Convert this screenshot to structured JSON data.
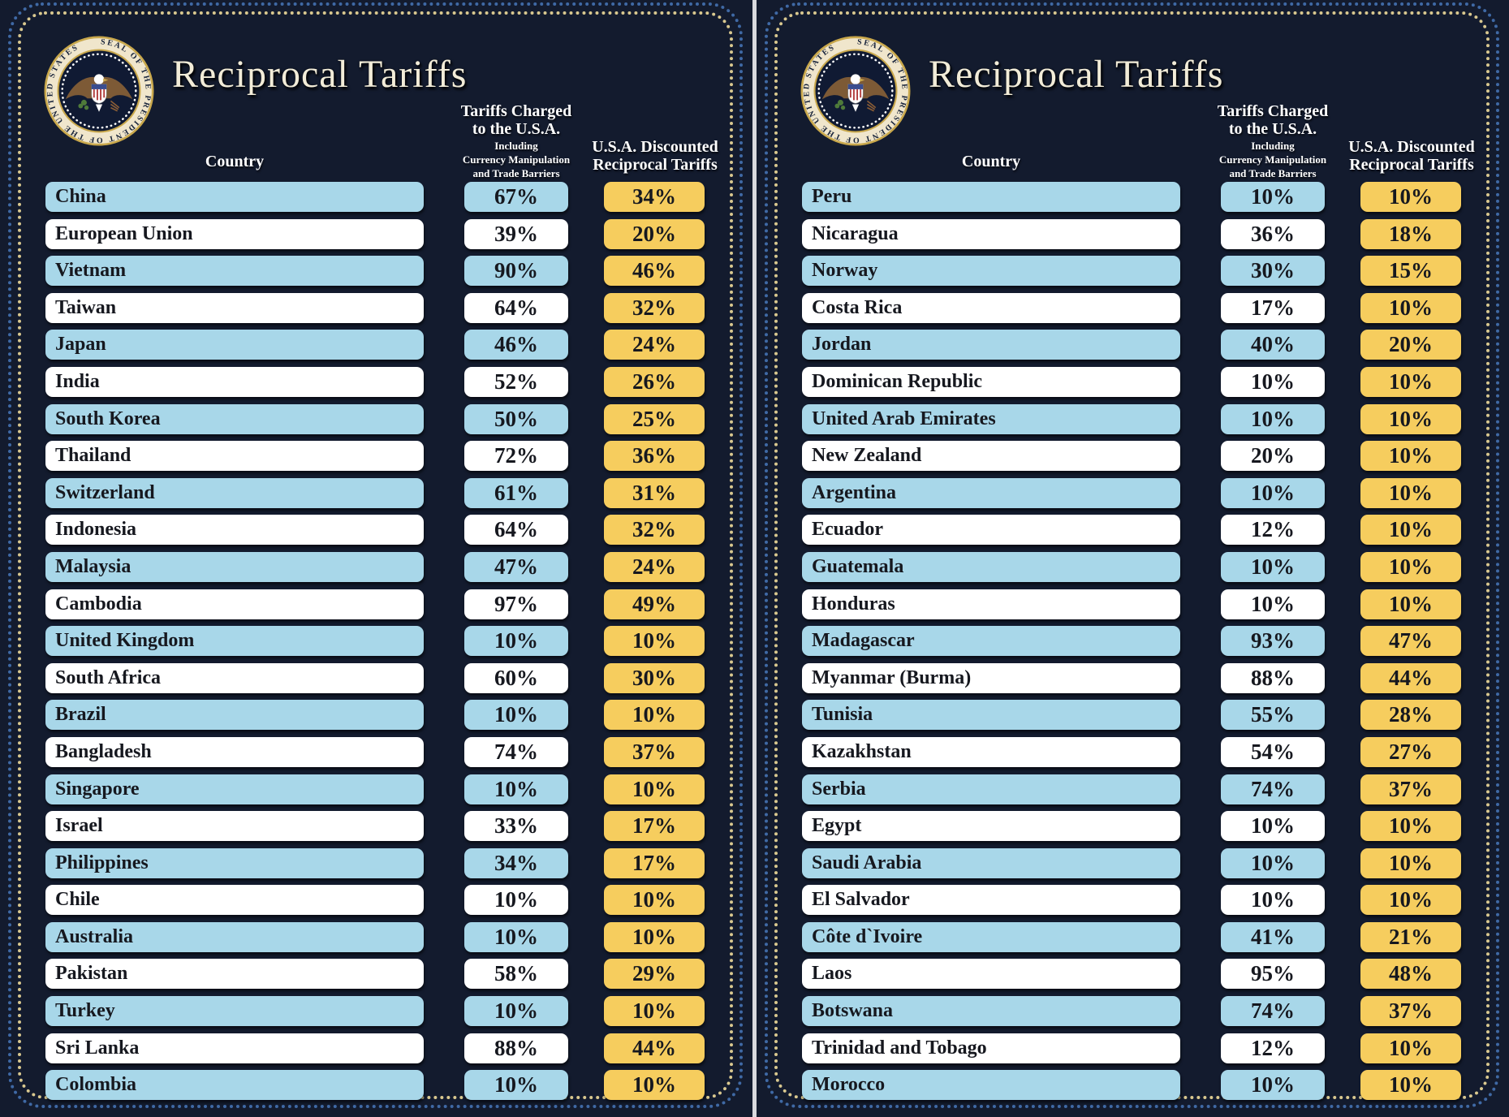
{
  "colors": {
    "background": "#131b2e",
    "row_blue": "#a8d7e9",
    "row_white": "#ffffff",
    "discount_gold": "#f6cd5e",
    "border_blue_dots": "#3f69a5",
    "border_cream_dots": "#d9c88f",
    "title_cream": "#f2ecd8",
    "header_text": "#ffffff",
    "row_text": "#16181f"
  },
  "seal": {
    "ring_text": "SEAL OF THE PRESIDENT OF THE UNITED STATES"
  },
  "panels": [
    {
      "title": "Reciprocal Tariffs",
      "col_country": "Country",
      "col_charged_line1": "Tariffs Charged",
      "col_charged_line2": "to the U.S.A.",
      "col_charged_sub1": "Including",
      "col_charged_sub2": "Currency Manipulation",
      "col_charged_sub3": "and Trade Barriers",
      "col_discounted_line1": "U.S.A. Discounted",
      "col_discounted_line2": "Reciprocal Tariffs",
      "rows": [
        {
          "country": "China",
          "charged": "67%",
          "discounted": "34%"
        },
        {
          "country": "European Union",
          "charged": "39%",
          "discounted": "20%"
        },
        {
          "country": "Vietnam",
          "charged": "90%",
          "discounted": "46%"
        },
        {
          "country": "Taiwan",
          "charged": "64%",
          "discounted": "32%"
        },
        {
          "country": "Japan",
          "charged": "46%",
          "discounted": "24%"
        },
        {
          "country": "India",
          "charged": "52%",
          "discounted": "26%"
        },
        {
          "country": "South Korea",
          "charged": "50%",
          "discounted": "25%"
        },
        {
          "country": "Thailand",
          "charged": "72%",
          "discounted": "36%"
        },
        {
          "country": "Switzerland",
          "charged": "61%",
          "discounted": "31%"
        },
        {
          "country": "Indonesia",
          "charged": "64%",
          "discounted": "32%"
        },
        {
          "country": "Malaysia",
          "charged": "47%",
          "discounted": "24%"
        },
        {
          "country": "Cambodia",
          "charged": "97%",
          "discounted": "49%"
        },
        {
          "country": "United Kingdom",
          "charged": "10%",
          "discounted": "10%"
        },
        {
          "country": "South Africa",
          "charged": "60%",
          "discounted": "30%"
        },
        {
          "country": "Brazil",
          "charged": "10%",
          "discounted": "10%"
        },
        {
          "country": "Bangladesh",
          "charged": "74%",
          "discounted": "37%"
        },
        {
          "country": "Singapore",
          "charged": "10%",
          "discounted": "10%"
        },
        {
          "country": "Israel",
          "charged": "33%",
          "discounted": "17%"
        },
        {
          "country": "Philippines",
          "charged": "34%",
          "discounted": "17%"
        },
        {
          "country": "Chile",
          "charged": "10%",
          "discounted": "10%"
        },
        {
          "country": "Australia",
          "charged": "10%",
          "discounted": "10%"
        },
        {
          "country": "Pakistan",
          "charged": "58%",
          "discounted": "29%"
        },
        {
          "country": "Turkey",
          "charged": "10%",
          "discounted": "10%"
        },
        {
          "country": "Sri Lanka",
          "charged": "88%",
          "discounted": "44%"
        },
        {
          "country": "Colombia",
          "charged": "10%",
          "discounted": "10%"
        }
      ]
    },
    {
      "title": "Reciprocal Tariffs",
      "col_country": "Country",
      "col_charged_line1": "Tariffs Charged",
      "col_charged_line2": "to the U.S.A.",
      "col_charged_sub1": "Including",
      "col_charged_sub2": "Currency Manipulation",
      "col_charged_sub3": "and Trade Barriers",
      "col_discounted_line1": "U.S.A. Discounted",
      "col_discounted_line2": "Reciprocal Tariffs",
      "rows": [
        {
          "country": "Peru",
          "charged": "10%",
          "discounted": "10%"
        },
        {
          "country": "Nicaragua",
          "charged": "36%",
          "discounted": "18%"
        },
        {
          "country": "Norway",
          "charged": "30%",
          "discounted": "15%"
        },
        {
          "country": "Costa Rica",
          "charged": "17%",
          "discounted": "10%"
        },
        {
          "country": "Jordan",
          "charged": "40%",
          "discounted": "20%"
        },
        {
          "country": "Dominican Republic",
          "charged": "10%",
          "discounted": "10%"
        },
        {
          "country": "United Arab Emirates",
          "charged": "10%",
          "discounted": "10%"
        },
        {
          "country": "New Zealand",
          "charged": "20%",
          "discounted": "10%"
        },
        {
          "country": "Argentina",
          "charged": "10%",
          "discounted": "10%"
        },
        {
          "country": "Ecuador",
          "charged": "12%",
          "discounted": "10%"
        },
        {
          "country": "Guatemala",
          "charged": "10%",
          "discounted": "10%"
        },
        {
          "country": "Honduras",
          "charged": "10%",
          "discounted": "10%"
        },
        {
          "country": "Madagascar",
          "charged": "93%",
          "discounted": "47%"
        },
        {
          "country": "Myanmar (Burma)",
          "charged": "88%",
          "discounted": "44%"
        },
        {
          "country": "Tunisia",
          "charged": "55%",
          "discounted": "28%"
        },
        {
          "country": "Kazakhstan",
          "charged": "54%",
          "discounted": "27%"
        },
        {
          "country": "Serbia",
          "charged": "74%",
          "discounted": "37%"
        },
        {
          "country": "Egypt",
          "charged": "10%",
          "discounted": "10%"
        },
        {
          "country": "Saudi Arabia",
          "charged": "10%",
          "discounted": "10%"
        },
        {
          "country": "El Salvador",
          "charged": "10%",
          "discounted": "10%"
        },
        {
          "country": "Côte d`Ivoire",
          "charged": "41%",
          "discounted": "21%"
        },
        {
          "country": "Laos",
          "charged": "95%",
          "discounted": "48%"
        },
        {
          "country": "Botswana",
          "charged": "74%",
          "discounted": "37%"
        },
        {
          "country": "Trinidad and Tobago",
          "charged": "12%",
          "discounted": "10%"
        },
        {
          "country": "Morocco",
          "charged": "10%",
          "discounted": "10%"
        }
      ]
    }
  ],
  "chart_data": {
    "type": "table",
    "title": "Reciprocal Tariffs",
    "columns": [
      "Country",
      "Tariffs Charged to the U.S.A. Including Currency Manipulation and Trade Barriers (%)",
      "U.S.A. Discounted Reciprocal Tariffs (%)"
    ],
    "series": [
      {
        "name": "panel-1",
        "rows": [
          [
            "China",
            67,
            34
          ],
          [
            "European Union",
            39,
            20
          ],
          [
            "Vietnam",
            90,
            46
          ],
          [
            "Taiwan",
            64,
            32
          ],
          [
            "Japan",
            46,
            24
          ],
          [
            "India",
            52,
            26
          ],
          [
            "South Korea",
            50,
            25
          ],
          [
            "Thailand",
            72,
            36
          ],
          [
            "Switzerland",
            61,
            31
          ],
          [
            "Indonesia",
            64,
            32
          ],
          [
            "Malaysia",
            47,
            24
          ],
          [
            "Cambodia",
            97,
            49
          ],
          [
            "United Kingdom",
            10,
            10
          ],
          [
            "South Africa",
            60,
            30
          ],
          [
            "Brazil",
            10,
            10
          ],
          [
            "Bangladesh",
            74,
            37
          ],
          [
            "Singapore",
            10,
            10
          ],
          [
            "Israel",
            33,
            17
          ],
          [
            "Philippines",
            34,
            17
          ],
          [
            "Chile",
            10,
            10
          ],
          [
            "Australia",
            10,
            10
          ],
          [
            "Pakistan",
            58,
            29
          ],
          [
            "Turkey",
            10,
            10
          ],
          [
            "Sri Lanka",
            88,
            44
          ],
          [
            "Colombia",
            10,
            10
          ]
        ]
      },
      {
        "name": "panel-2",
        "rows": [
          [
            "Peru",
            10,
            10
          ],
          [
            "Nicaragua",
            36,
            18
          ],
          [
            "Norway",
            30,
            15
          ],
          [
            "Costa Rica",
            17,
            10
          ],
          [
            "Jordan",
            40,
            20
          ],
          [
            "Dominican Republic",
            10,
            10
          ],
          [
            "United Arab Emirates",
            10,
            10
          ],
          [
            "New Zealand",
            20,
            10
          ],
          [
            "Argentina",
            10,
            10
          ],
          [
            "Ecuador",
            12,
            10
          ],
          [
            "Guatemala",
            10,
            10
          ],
          [
            "Honduras",
            10,
            10
          ],
          [
            "Madagascar",
            93,
            47
          ],
          [
            "Myanmar (Burma)",
            88,
            44
          ],
          [
            "Tunisia",
            55,
            28
          ],
          [
            "Kazakhstan",
            54,
            27
          ],
          [
            "Serbia",
            74,
            37
          ],
          [
            "Egypt",
            10,
            10
          ],
          [
            "Saudi Arabia",
            10,
            10
          ],
          [
            "El Salvador",
            10,
            10
          ],
          [
            "Côte d`Ivoire",
            41,
            21
          ],
          [
            "Laos",
            95,
            48
          ],
          [
            "Botswana",
            74,
            37
          ],
          [
            "Trinidad and Tobago",
            12,
            10
          ],
          [
            "Morocco",
            10,
            10
          ]
        ]
      }
    ]
  }
}
